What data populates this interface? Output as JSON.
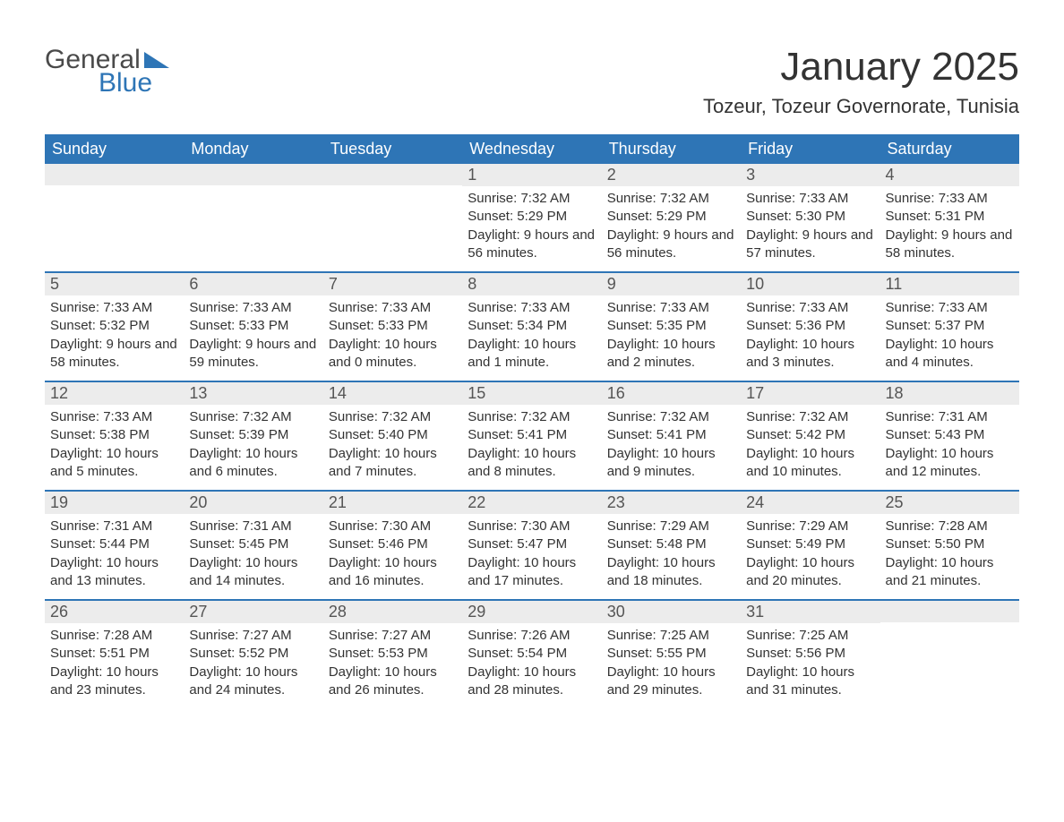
{
  "brand": {
    "general": "General",
    "blue": "Blue"
  },
  "header": {
    "month_title": "January 2025",
    "location": "Tozeur, Tozeur Governorate, Tunisia"
  },
  "colors": {
    "primary": "#2e75b6",
    "header_text": "#ffffff",
    "daynum_bg": "#ececec",
    "body_text": "#333333"
  },
  "day_labels": [
    "Sunday",
    "Monday",
    "Tuesday",
    "Wednesday",
    "Thursday",
    "Friday",
    "Saturday"
  ],
  "weeks": [
    [
      {
        "num": "",
        "lines": []
      },
      {
        "num": "",
        "lines": []
      },
      {
        "num": "",
        "lines": []
      },
      {
        "num": "1",
        "lines": [
          "Sunrise: 7:32 AM",
          "Sunset: 5:29 PM",
          "Daylight: 9 hours and 56 minutes."
        ]
      },
      {
        "num": "2",
        "lines": [
          "Sunrise: 7:32 AM",
          "Sunset: 5:29 PM",
          "Daylight: 9 hours and 56 minutes."
        ]
      },
      {
        "num": "3",
        "lines": [
          "Sunrise: 7:33 AM",
          "Sunset: 5:30 PM",
          "Daylight: 9 hours and 57 minutes."
        ]
      },
      {
        "num": "4",
        "lines": [
          "Sunrise: 7:33 AM",
          "Sunset: 5:31 PM",
          "Daylight: 9 hours and 58 minutes."
        ]
      }
    ],
    [
      {
        "num": "5",
        "lines": [
          "Sunrise: 7:33 AM",
          "Sunset: 5:32 PM",
          "Daylight: 9 hours and 58 minutes."
        ]
      },
      {
        "num": "6",
        "lines": [
          "Sunrise: 7:33 AM",
          "Sunset: 5:33 PM",
          "Daylight: 9 hours and 59 minutes."
        ]
      },
      {
        "num": "7",
        "lines": [
          "Sunrise: 7:33 AM",
          "Sunset: 5:33 PM",
          "Daylight: 10 hours and 0 minutes."
        ]
      },
      {
        "num": "8",
        "lines": [
          "Sunrise: 7:33 AM",
          "Sunset: 5:34 PM",
          "Daylight: 10 hours and 1 minute."
        ]
      },
      {
        "num": "9",
        "lines": [
          "Sunrise: 7:33 AM",
          "Sunset: 5:35 PM",
          "Daylight: 10 hours and 2 minutes."
        ]
      },
      {
        "num": "10",
        "lines": [
          "Sunrise: 7:33 AM",
          "Sunset: 5:36 PM",
          "Daylight: 10 hours and 3 minutes."
        ]
      },
      {
        "num": "11",
        "lines": [
          "Sunrise: 7:33 AM",
          "Sunset: 5:37 PM",
          "Daylight: 10 hours and 4 minutes."
        ]
      }
    ],
    [
      {
        "num": "12",
        "lines": [
          "Sunrise: 7:33 AM",
          "Sunset: 5:38 PM",
          "Daylight: 10 hours and 5 minutes."
        ]
      },
      {
        "num": "13",
        "lines": [
          "Sunrise: 7:32 AM",
          "Sunset: 5:39 PM",
          "Daylight: 10 hours and 6 minutes."
        ]
      },
      {
        "num": "14",
        "lines": [
          "Sunrise: 7:32 AM",
          "Sunset: 5:40 PM",
          "Daylight: 10 hours and 7 minutes."
        ]
      },
      {
        "num": "15",
        "lines": [
          "Sunrise: 7:32 AM",
          "Sunset: 5:41 PM",
          "Daylight: 10 hours and 8 minutes."
        ]
      },
      {
        "num": "16",
        "lines": [
          "Sunrise: 7:32 AM",
          "Sunset: 5:41 PM",
          "Daylight: 10 hours and 9 minutes."
        ]
      },
      {
        "num": "17",
        "lines": [
          "Sunrise: 7:32 AM",
          "Sunset: 5:42 PM",
          "Daylight: 10 hours and 10 minutes."
        ]
      },
      {
        "num": "18",
        "lines": [
          "Sunrise: 7:31 AM",
          "Sunset: 5:43 PM",
          "Daylight: 10 hours and 12 minutes."
        ]
      }
    ],
    [
      {
        "num": "19",
        "lines": [
          "Sunrise: 7:31 AM",
          "Sunset: 5:44 PM",
          "Daylight: 10 hours and 13 minutes."
        ]
      },
      {
        "num": "20",
        "lines": [
          "Sunrise: 7:31 AM",
          "Sunset: 5:45 PM",
          "Daylight: 10 hours and 14 minutes."
        ]
      },
      {
        "num": "21",
        "lines": [
          "Sunrise: 7:30 AM",
          "Sunset: 5:46 PM",
          "Daylight: 10 hours and 16 minutes."
        ]
      },
      {
        "num": "22",
        "lines": [
          "Sunrise: 7:30 AM",
          "Sunset: 5:47 PM",
          "Daylight: 10 hours and 17 minutes."
        ]
      },
      {
        "num": "23",
        "lines": [
          "Sunrise: 7:29 AM",
          "Sunset: 5:48 PM",
          "Daylight: 10 hours and 18 minutes."
        ]
      },
      {
        "num": "24",
        "lines": [
          "Sunrise: 7:29 AM",
          "Sunset: 5:49 PM",
          "Daylight: 10 hours and 20 minutes."
        ]
      },
      {
        "num": "25",
        "lines": [
          "Sunrise: 7:28 AM",
          "Sunset: 5:50 PM",
          "Daylight: 10 hours and 21 minutes."
        ]
      }
    ],
    [
      {
        "num": "26",
        "lines": [
          "Sunrise: 7:28 AM",
          "Sunset: 5:51 PM",
          "Daylight: 10 hours and 23 minutes."
        ]
      },
      {
        "num": "27",
        "lines": [
          "Sunrise: 7:27 AM",
          "Sunset: 5:52 PM",
          "Daylight: 10 hours and 24 minutes."
        ]
      },
      {
        "num": "28",
        "lines": [
          "Sunrise: 7:27 AM",
          "Sunset: 5:53 PM",
          "Daylight: 10 hours and 26 minutes."
        ]
      },
      {
        "num": "29",
        "lines": [
          "Sunrise: 7:26 AM",
          "Sunset: 5:54 PM",
          "Daylight: 10 hours and 28 minutes."
        ]
      },
      {
        "num": "30",
        "lines": [
          "Sunrise: 7:25 AM",
          "Sunset: 5:55 PM",
          "Daylight: 10 hours and 29 minutes."
        ]
      },
      {
        "num": "31",
        "lines": [
          "Sunrise: 7:25 AM",
          "Sunset: 5:56 PM",
          "Daylight: 10 hours and 31 minutes."
        ]
      },
      {
        "num": "",
        "lines": []
      }
    ]
  ]
}
